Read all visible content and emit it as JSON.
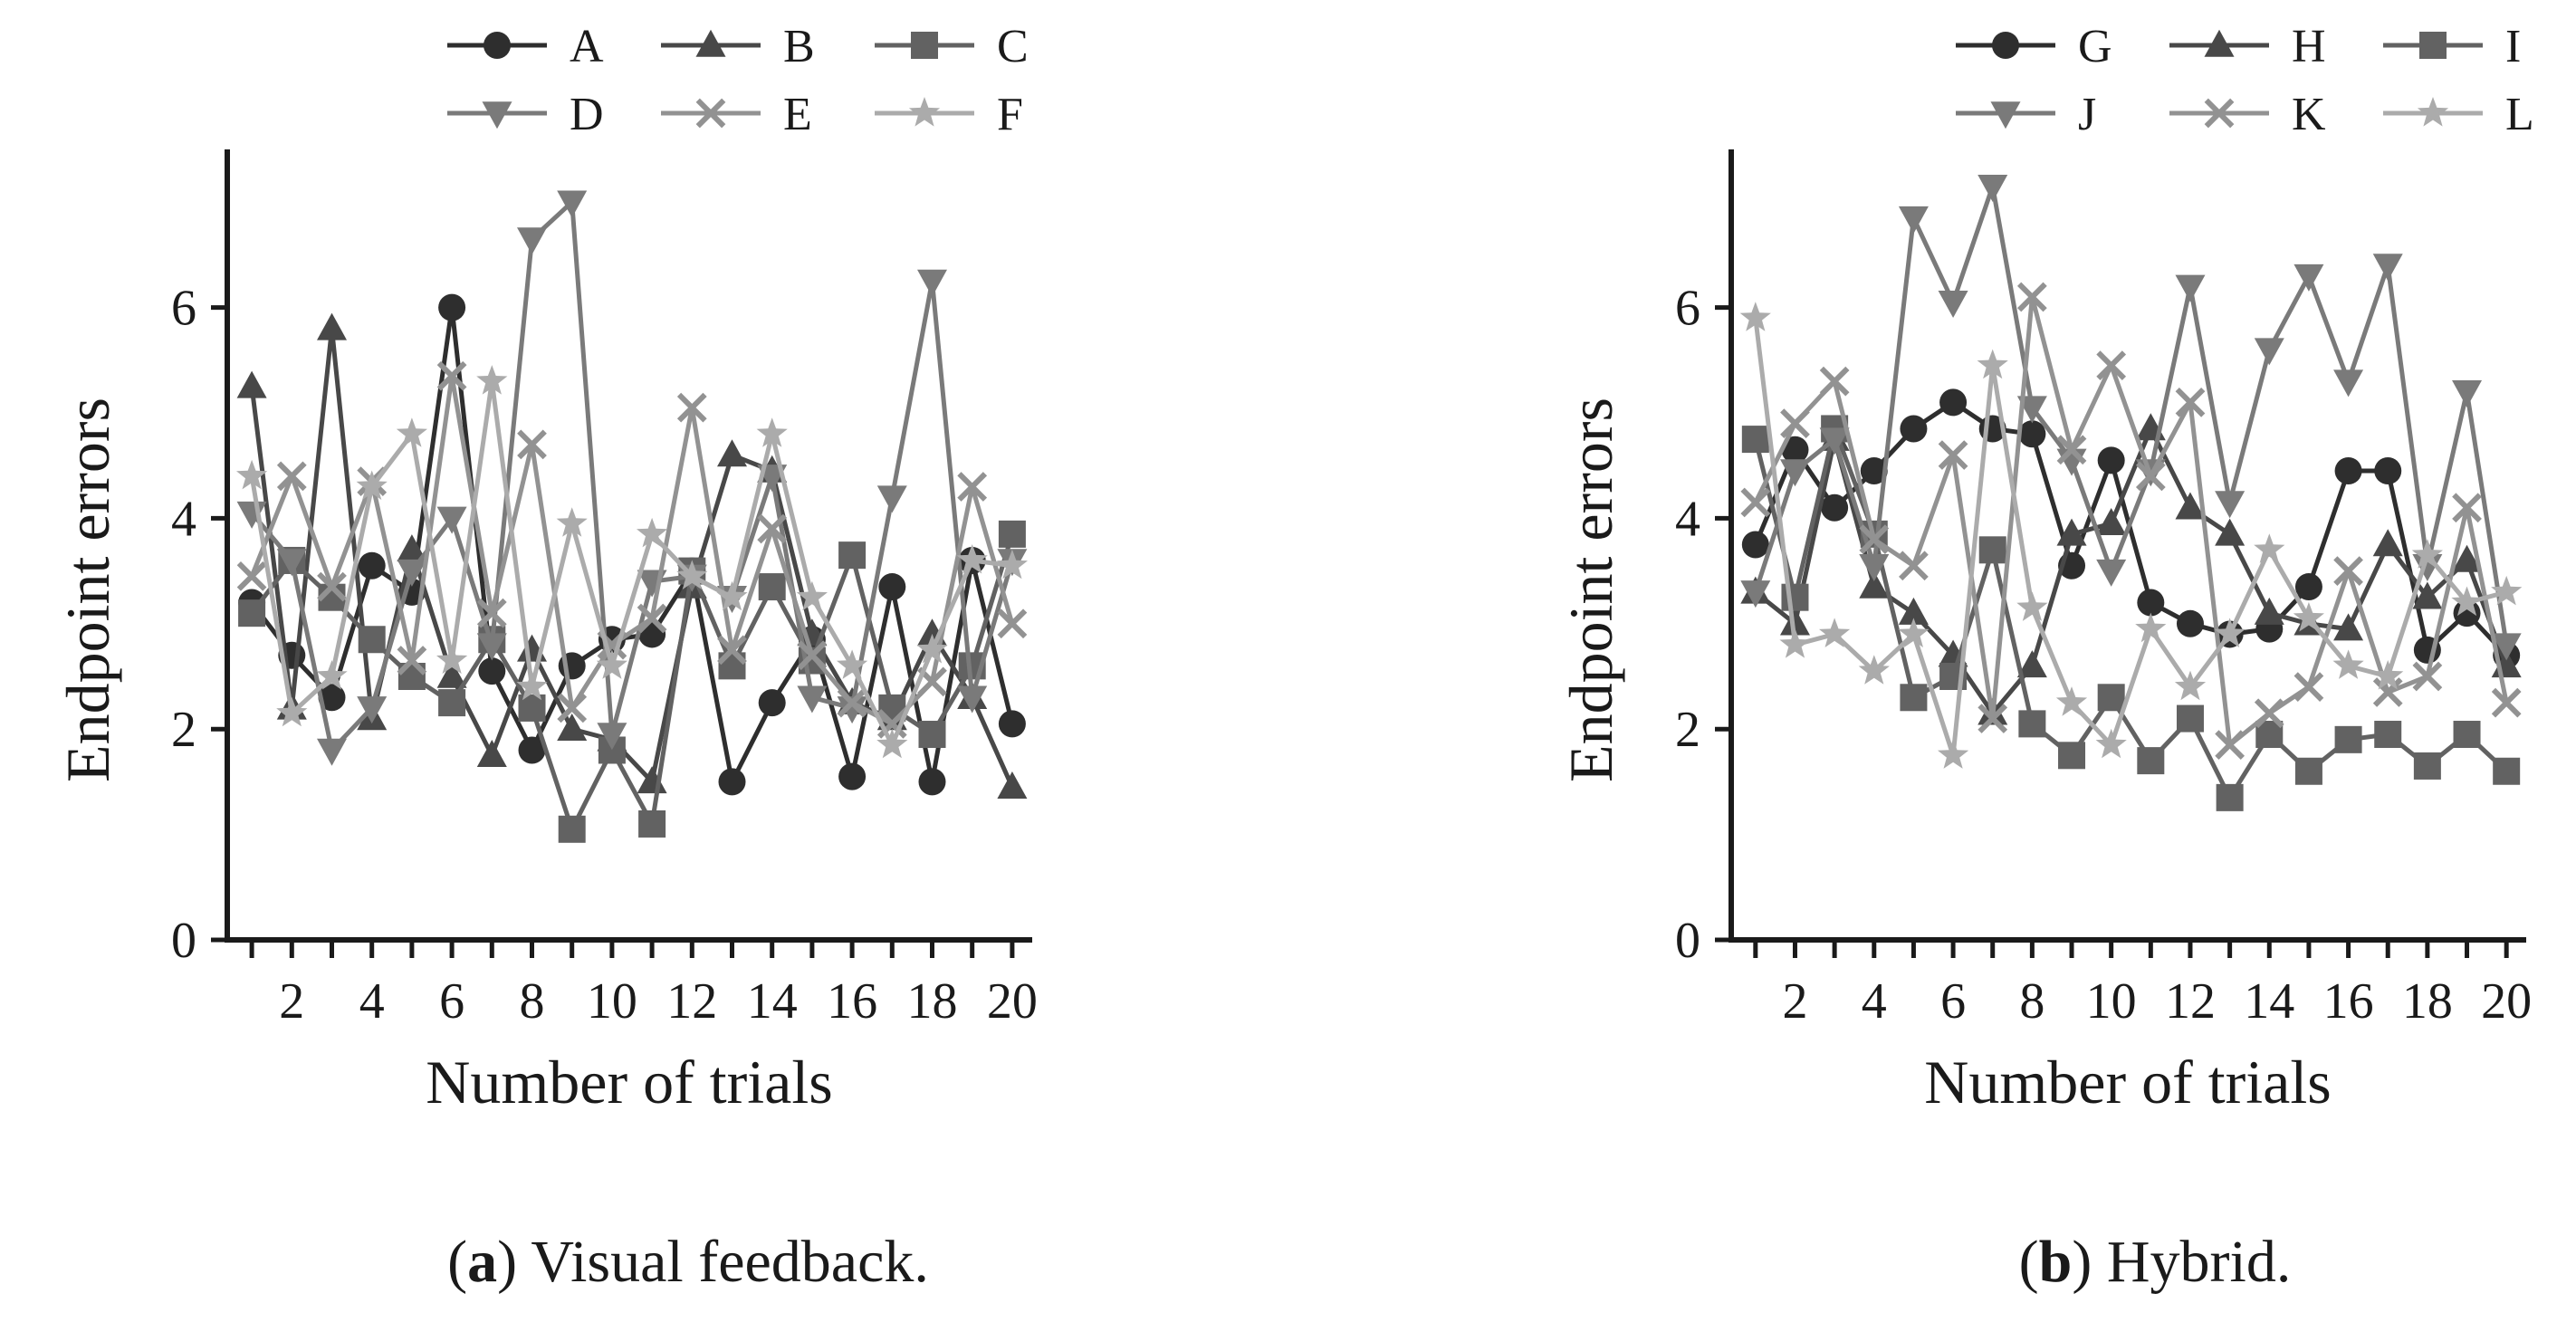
{
  "chart_data": [
    {
      "id": "a",
      "type": "line",
      "caption_label": "a",
      "caption_text": "Visual feedback.",
      "xlabel": "Number of trials",
      "ylabel": "Endpoint errors",
      "xlim": [
        0.5,
        20.5
      ],
      "ylim": [
        0,
        7.5
      ],
      "xticks": [
        1,
        2,
        3,
        4,
        5,
        6,
        7,
        8,
        9,
        10,
        11,
        12,
        13,
        14,
        15,
        16,
        17,
        18,
        19,
        20
      ],
      "xticklabels": [
        "2",
        "4",
        "6",
        "8",
        "10",
        "12",
        "14",
        "16",
        "18",
        "20"
      ],
      "xticklabel_values": [
        2,
        4,
        6,
        8,
        10,
        12,
        14,
        16,
        18,
        20
      ],
      "yticks": [
        0,
        2,
        4,
        6
      ],
      "yticklabels": [
        "0",
        "2",
        "4",
        "6"
      ],
      "legend_position": "top",
      "x": [
        1,
        2,
        3,
        4,
        5,
        6,
        7,
        8,
        9,
        10,
        11,
        12,
        13,
        14,
        15,
        16,
        17,
        18,
        19,
        20
      ],
      "series": [
        {
          "name": "A",
          "marker": "circle",
          "color": "#2e2e2e",
          "values": [
            3.2,
            2.7,
            2.3,
            3.55,
            3.3,
            6.0,
            2.55,
            1.8,
            2.6,
            2.85,
            2.9,
            3.5,
            1.5,
            2.25,
            2.85,
            1.55,
            3.35,
            1.5,
            3.6,
            2.05
          ]
        },
        {
          "name": "B",
          "marker": "triangle-up",
          "color": "#484848",
          "values": [
            5.25,
            2.2,
            5.8,
            2.1,
            3.7,
            2.5,
            1.75,
            2.75,
            2.0,
            1.9,
            1.5,
            3.35,
            4.6,
            4.45,
            2.9,
            2.25,
            2.1,
            2.9,
            2.3,
            1.45
          ]
        },
        {
          "name": "C",
          "marker": "square",
          "color": "#626262",
          "values": [
            3.1,
            3.6,
            3.25,
            2.85,
            2.5,
            2.25,
            2.85,
            2.2,
            1.05,
            1.8,
            1.1,
            3.5,
            2.6,
            3.35,
            2.65,
            3.65,
            2.2,
            1.95,
            2.6,
            3.85
          ]
        },
        {
          "name": "D",
          "marker": "triangle-down",
          "color": "#7a7a7a",
          "values": [
            4.05,
            3.6,
            1.8,
            2.2,
            3.5,
            4.0,
            2.8,
            6.65,
            7.0,
            1.95,
            3.4,
            3.45,
            3.25,
            4.4,
            2.3,
            2.2,
            4.2,
            6.25,
            2.3,
            3.6
          ]
        },
        {
          "name": "E",
          "marker": "x",
          "color": "#929292",
          "values": [
            3.45,
            4.4,
            3.35,
            4.35,
            2.65,
            5.35,
            3.1,
            4.7,
            2.2,
            2.8,
            3.05,
            5.05,
            2.75,
            3.9,
            2.7,
            2.25,
            2.05,
            2.45,
            4.3,
            3.0
          ]
        },
        {
          "name": "F",
          "marker": "star",
          "color": "#ababab",
          "values": [
            4.4,
            2.15,
            2.5,
            4.3,
            4.8,
            2.65,
            5.3,
            2.4,
            3.95,
            2.6,
            3.85,
            3.45,
            3.25,
            4.8,
            3.25,
            2.6,
            1.85,
            2.75,
            3.6,
            3.55
          ]
        }
      ]
    },
    {
      "id": "b",
      "type": "line",
      "caption_label": "b",
      "caption_text": "Hybrid.",
      "xlabel": "Number of trials",
      "ylabel": "Endpoint errors",
      "xlim": [
        0.5,
        20.5
      ],
      "ylim": [
        0,
        7.5
      ],
      "xticks": [
        1,
        2,
        3,
        4,
        5,
        6,
        7,
        8,
        9,
        10,
        11,
        12,
        13,
        14,
        15,
        16,
        17,
        18,
        19,
        20
      ],
      "xticklabels": [
        "2",
        "4",
        "6",
        "8",
        "10",
        "12",
        "14",
        "16",
        "18",
        "20"
      ],
      "xticklabel_values": [
        2,
        4,
        6,
        8,
        10,
        12,
        14,
        16,
        18,
        20
      ],
      "yticks": [
        0,
        2,
        4,
        6
      ],
      "yticklabels": [
        "0",
        "2",
        "4",
        "6"
      ],
      "legend_position": "top",
      "x": [
        1,
        2,
        3,
        4,
        5,
        6,
        7,
        8,
        9,
        10,
        11,
        12,
        13,
        14,
        15,
        16,
        17,
        18,
        19,
        20
      ],
      "series": [
        {
          "name": "G",
          "marker": "circle",
          "color": "#2e2e2e",
          "values": [
            3.75,
            4.65,
            4.1,
            4.45,
            4.85,
            5.1,
            4.85,
            4.8,
            3.55,
            4.55,
            3.2,
            3.0,
            2.9,
            2.95,
            3.35,
            4.45,
            4.45,
            2.75,
            3.1,
            2.7
          ]
        },
        {
          "name": "H",
          "marker": "triangle-up",
          "color": "#484848",
          "values": [
            3.3,
            3.0,
            4.75,
            3.35,
            3.1,
            2.7,
            2.15,
            2.6,
            3.85,
            3.95,
            4.85,
            4.1,
            3.85,
            3.1,
            3.0,
            2.95,
            3.75,
            3.25,
            3.6,
            2.6
          ]
        },
        {
          "name": "I",
          "marker": "square",
          "color": "#626262",
          "values": [
            4.75,
            3.25,
            4.85,
            3.85,
            2.3,
            2.5,
            3.7,
            2.05,
            1.75,
            2.3,
            1.7,
            2.1,
            1.35,
            1.95,
            1.6,
            1.9,
            1.95,
            1.65,
            1.95,
            1.6
          ]
        },
        {
          "name": "J",
          "marker": "triangle-down",
          "color": "#7a7a7a",
          "values": [
            3.3,
            4.45,
            4.75,
            3.55,
            6.85,
            6.05,
            7.15,
            5.05,
            4.55,
            3.5,
            4.45,
            6.2,
            4.15,
            5.6,
            6.3,
            5.3,
            6.4,
            3.55,
            5.2,
            2.8
          ]
        },
        {
          "name": "K",
          "marker": "x",
          "color": "#929292",
          "values": [
            4.15,
            4.9,
            5.3,
            3.8,
            3.55,
            4.6,
            2.1,
            6.1,
            4.65,
            5.45,
            4.4,
            5.1,
            1.85,
            2.15,
            2.4,
            3.5,
            2.35,
            2.5,
            4.1,
            2.25
          ]
        },
        {
          "name": "L",
          "marker": "star",
          "color": "#ababab",
          "values": [
            5.9,
            2.8,
            2.9,
            2.55,
            2.9,
            1.75,
            5.45,
            3.15,
            2.25,
            1.85,
            2.95,
            2.4,
            2.9,
            3.7,
            3.05,
            2.6,
            2.5,
            3.65,
            3.2,
            3.3
          ]
        }
      ]
    }
  ]
}
